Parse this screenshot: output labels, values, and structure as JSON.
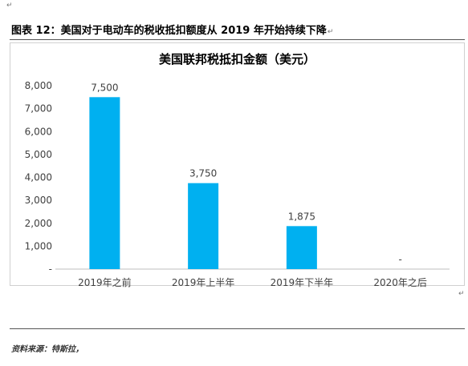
{
  "top_mark": "↵",
  "caption": "图表 12：美国对于电动车的税收抵扣额度从 2019 年开始持续下降",
  "caption_mark": "↵",
  "end_mark": "↵",
  "source": "资料来源：特斯拉，",
  "colors": {
    "bar": "#00B0F0",
    "axis": "#bfbfbf"
  },
  "chart_data": {
    "type": "bar",
    "title": "美国联邦税抵扣金额（美元）",
    "categories": [
      "2019年之前",
      "2019年上半年",
      "2019年下半年",
      "2020年之后"
    ],
    "values": [
      7500,
      3750,
      1875,
      0
    ],
    "data_labels": [
      "7,500",
      "3,750",
      "1,875",
      "-"
    ],
    "ylim": [
      0,
      8000
    ],
    "yticks": [
      0,
      1000,
      2000,
      3000,
      4000,
      5000,
      6000,
      7000,
      8000
    ],
    "ytick_labels": [
      "-",
      "1,000",
      "2,000",
      "3,000",
      "4,000",
      "5,000",
      "6,000",
      "7,000",
      "8,000"
    ],
    "grid": false,
    "legend": "none"
  }
}
